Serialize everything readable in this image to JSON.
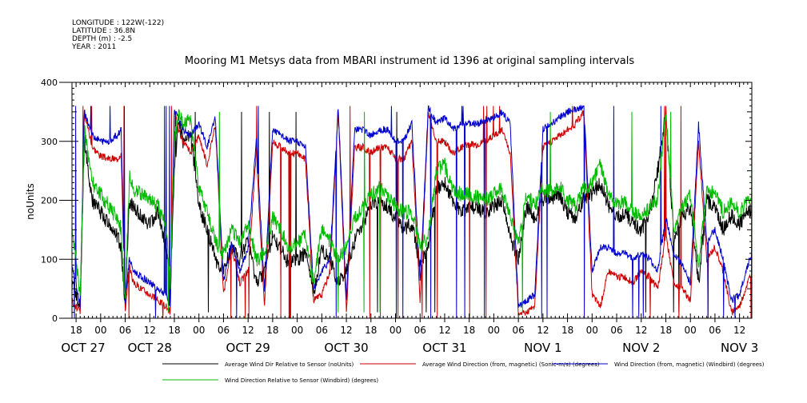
{
  "header": {
    "info_lines": [
      "LONGITUDE : 122W(-122)",
      "LATITUDE : 36.8N",
      "DEPTH (m) : -2.5",
      "YEAR : 2011"
    ]
  },
  "chart_data": {
    "type": "line",
    "title": "Mooring M1 Metsys data from MBARI instrument id 1396 at original sampling intervals",
    "ylabel": "noUnits",
    "xlabel": "",
    "ylim": [
      0,
      400
    ],
    "yticks": [
      0,
      100,
      200,
      300,
      400
    ],
    "xlim": [
      17,
      183
    ],
    "x_unit": "hours since OCT 27 00:00 (2011)",
    "hour_ticks": [
      {
        "x": 18,
        "label": "18"
      },
      {
        "x": 24,
        "label": "00"
      },
      {
        "x": 30,
        "label": "06"
      },
      {
        "x": 36,
        "label": "12"
      },
      {
        "x": 42,
        "label": "18"
      },
      {
        "x": 48,
        "label": "00"
      },
      {
        "x": 54,
        "label": "06"
      },
      {
        "x": 60,
        "label": "12"
      },
      {
        "x": 66,
        "label": "18"
      },
      {
        "x": 72,
        "label": "00"
      },
      {
        "x": 78,
        "label": "06"
      },
      {
        "x": 84,
        "label": "12"
      },
      {
        "x": 90,
        "label": "18"
      },
      {
        "x": 96,
        "label": "00"
      },
      {
        "x": 102,
        "label": "06"
      },
      {
        "x": 108,
        "label": "12"
      },
      {
        "x": 114,
        "label": "18"
      },
      {
        "x": 120,
        "label": "00"
      },
      {
        "x": 126,
        "label": "06"
      },
      {
        "x": 132,
        "label": "12"
      },
      {
        "x": 138,
        "label": "18"
      },
      {
        "x": 144,
        "label": "00"
      },
      {
        "x": 150,
        "label": "06"
      },
      {
        "x": 156,
        "label": "12"
      },
      {
        "x": 162,
        "label": "18"
      },
      {
        "x": 168,
        "label": "00"
      },
      {
        "x": 174,
        "label": "06"
      },
      {
        "x": 180,
        "label": "12"
      }
    ],
    "day_labels": [
      {
        "x": 17,
        "label": "OCT 27"
      },
      {
        "x": 36,
        "label": "OCT 28"
      },
      {
        "x": 60,
        "label": "OCT 29"
      },
      {
        "x": 84,
        "label": "OCT 30"
      },
      {
        "x": 108,
        "label": "OCT 31"
      },
      {
        "x": 132,
        "label": "NOV  1"
      },
      {
        "x": 156,
        "label": "NOV  2"
      },
      {
        "x": 180,
        "label": "NOV  3"
      }
    ],
    "series": [
      {
        "name": "Average Wind Dir Relative to Sensor (noUnits)",
        "color": "#000000",
        "x": [
          17,
          18,
          19,
          20,
          22,
          24,
          26,
          28,
          29,
          30,
          31,
          32,
          34,
          36,
          38,
          40,
          41,
          42,
          43,
          44,
          46,
          48,
          50,
          52,
          54,
          56,
          58,
          60,
          62,
          64,
          66,
          68,
          70,
          72,
          74,
          76,
          78,
          80,
          82,
          84,
          86,
          88,
          90,
          92,
          94,
          96,
          98,
          100,
          102,
          104,
          106,
          108,
          110,
          112,
          114,
          116,
          118,
          120,
          122,
          124,
          126,
          128,
          130,
          132,
          134,
          136,
          138,
          140,
          142,
          144,
          146,
          148,
          150,
          152,
          154,
          156,
          158,
          160,
          162,
          164,
          166,
          168,
          170,
          172,
          174,
          176,
          178,
          180,
          182,
          183
        ],
        "y": [
          60,
          40,
          20,
          300,
          200,
          180,
          160,
          140,
          120,
          20,
          200,
          190,
          170,
          160,
          180,
          120,
          40,
          250,
          340,
          300,
          310,
          190,
          150,
          100,
          80,
          120,
          100,
          130,
          60,
          80,
          140,
          120,
          90,
          100,
          110,
          40,
          120,
          100,
          60,
          80,
          130,
          160,
          190,
          200,
          190,
          170,
          150,
          160,
          90,
          120,
          220,
          230,
          200,
          180,
          190,
          185,
          180,
          190,
          200,
          140,
          100,
          190,
          170,
          200,
          205,
          210,
          180,
          170,
          205,
          210,
          230,
          190,
          170,
          180,
          160,
          150,
          175,
          250,
          350,
          130,
          170,
          190,
          60,
          200,
          190,
          150,
          175,
          160,
          180,
          185
        ],
        "style": "noisy"
      },
      {
        "name": "Average Wind Direction (from, magnetic) (Sonic-m/s) (degrees)",
        "color": "#cc0000",
        "x": [
          17,
          18,
          19,
          20,
          22,
          24,
          26,
          28,
          29,
          30,
          31,
          32,
          34,
          36,
          38,
          40,
          41,
          42,
          43,
          44,
          46,
          48,
          50,
          52,
          54,
          56,
          58,
          60,
          62,
          64,
          66,
          68,
          70,
          72,
          74,
          76,
          78,
          80,
          82,
          84,
          86,
          88,
          90,
          92,
          94,
          96,
          98,
          100,
          102,
          104,
          106,
          108,
          110,
          112,
          114,
          116,
          118,
          120,
          122,
          124,
          126,
          128,
          130,
          132,
          134,
          136,
          138,
          140,
          142,
          144,
          146,
          148,
          150,
          152,
          154,
          156,
          158,
          160,
          162,
          164,
          166,
          168,
          170,
          172,
          174,
          176,
          178,
          180,
          182,
          183
        ],
        "y": [
          30,
          20,
          10,
          350,
          290,
          275,
          270,
          270,
          280,
          10,
          90,
          60,
          50,
          40,
          30,
          20,
          10,
          350,
          320,
          300,
          280,
          310,
          260,
          330,
          40,
          120,
          60,
          80,
          280,
          20,
          300,
          290,
          280,
          280,
          270,
          30,
          40,
          80,
          350,
          10,
          290,
          290,
          280,
          290,
          290,
          270,
          270,
          300,
          30,
          350,
          300,
          300,
          280,
          290,
          295,
          295,
          300,
          310,
          320,
          280,
          10,
          10,
          20,
          290,
          300,
          310,
          320,
          330,
          350,
          40,
          20,
          80,
          70,
          70,
          60,
          80,
          70,
          50,
          140,
          60,
          50,
          30,
          300,
          100,
          120,
          80,
          10,
          20,
          60,
          80
        ],
        "style": "spiky"
      },
      {
        "name": "Wind Direction (from, magnetic) (Windbird) (degrees)",
        "color": "#0000cc",
        "x": [
          17,
          18,
          19,
          20,
          22,
          24,
          26,
          28,
          29,
          30,
          31,
          32,
          34,
          36,
          38,
          40,
          41,
          42,
          43,
          44,
          46,
          48,
          50,
          52,
          54,
          56,
          58,
          60,
          62,
          64,
          66,
          68,
          70,
          72,
          74,
          76,
          78,
          80,
          82,
          84,
          86,
          88,
          90,
          92,
          94,
          96,
          98,
          100,
          102,
          104,
          106,
          108,
          110,
          112,
          114,
          116,
          118,
          120,
          122,
          124,
          126,
          128,
          130,
          132,
          134,
          136,
          138,
          140,
          142,
          144,
          146,
          148,
          150,
          152,
          154,
          156,
          158,
          160,
          162,
          164,
          166,
          168,
          170,
          172,
          174,
          176,
          178,
          180,
          182,
          183
        ],
        "y": [
          90,
          60,
          20,
          350,
          310,
          300,
          300,
          310,
          320,
          30,
          100,
          80,
          70,
          60,
          50,
          40,
          20,
          350,
          340,
          320,
          310,
          330,
          290,
          340,
          60,
          130,
          80,
          120,
          300,
          50,
          320,
          310,
          300,
          300,
          290,
          50,
          80,
          100,
          360,
          30,
          320,
          320,
          310,
          320,
          320,
          300,
          300,
          330,
          60,
          360,
          330,
          340,
          320,
          330,
          330,
          330,
          335,
          340,
          350,
          330,
          20,
          30,
          40,
          320,
          330,
          340,
          350,
          355,
          360,
          80,
          120,
          120,
          110,
          110,
          100,
          110,
          100,
          80,
          170,
          110,
          90,
          60,
          330,
          130,
          150,
          100,
          30,
          40,
          90,
          110
        ],
        "style": "spiky"
      },
      {
        "name": "Wind Direction Relative to Sensor (Windbird) (degrees)",
        "color": "#00bb00",
        "x": [
          17,
          18,
          19,
          20,
          22,
          24,
          26,
          28,
          29,
          30,
          31,
          32,
          34,
          36,
          38,
          40,
          41,
          42,
          43,
          44,
          46,
          48,
          50,
          52,
          54,
          56,
          58,
          60,
          62,
          64,
          66,
          68,
          70,
          72,
          74,
          76,
          78,
          80,
          82,
          84,
          86,
          88,
          90,
          92,
          94,
          96,
          98,
          100,
          102,
          104,
          106,
          108,
          110,
          112,
          114,
          116,
          118,
          120,
          122,
          124,
          126,
          128,
          130,
          132,
          134,
          136,
          138,
          140,
          142,
          144,
          146,
          148,
          150,
          152,
          154,
          156,
          158,
          160,
          162,
          164,
          166,
          168,
          170,
          172,
          174,
          176,
          178,
          180,
          182,
          183
        ],
        "y": [
          150,
          100,
          40,
          320,
          230,
          210,
          190,
          170,
          150,
          30,
          240,
          220,
          210,
          200,
          190,
          150,
          60,
          300,
          350,
          330,
          340,
          220,
          180,
          130,
          110,
          150,
          130,
          160,
          100,
          110,
          170,
          150,
          120,
          130,
          140,
          60,
          150,
          130,
          100,
          120,
          170,
          190,
          210,
          220,
          210,
          190,
          180,
          180,
          120,
          140,
          250,
          260,
          220,
          210,
          210,
          205,
          200,
          210,
          220,
          170,
          130,
          210,
          190,
          220,
          215,
          225,
          200,
          190,
          220,
          230,
          260,
          210,
          190,
          200,
          180,
          170,
          190,
          200,
          350,
          150,
          190,
          210,
          90,
          220,
          210,
          180,
          195,
          180,
          200,
          205
        ],
        "style": "noisy"
      }
    ]
  }
}
